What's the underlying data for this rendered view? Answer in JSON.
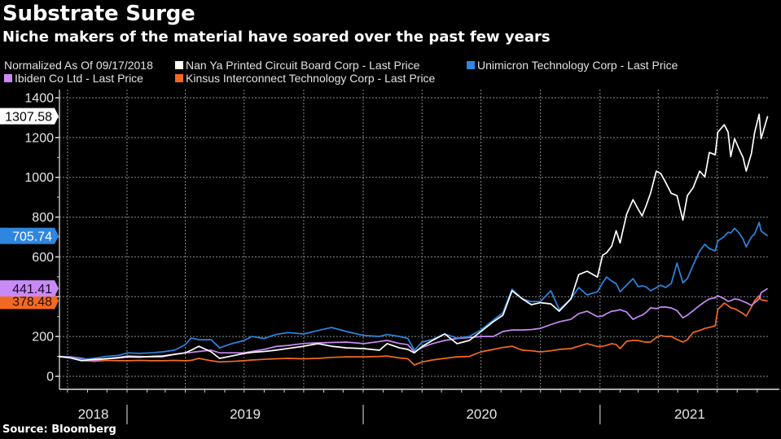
{
  "header": {
    "title": "Substrate Surge",
    "subtitle": "Niche makers of the material have soared over the past few years"
  },
  "footer": {
    "source": "Source: Bloomberg"
  },
  "chart_data": {
    "type": "line",
    "title": "Substrate Surge",
    "subtitle": "Niche makers of the material have soared over the past few years",
    "normalization_note": "Normalized As Of 09/17/2018",
    "xlabel": "",
    "ylabel": "",
    "ylim": [
      0,
      1400
    ],
    "yticks": [
      0,
      200,
      400,
      600,
      800,
      1000,
      1200,
      1400
    ],
    "ytick_labels": [
      "0",
      "200",
      "400",
      "600",
      "800",
      "1000",
      "1200",
      "1400"
    ],
    "xlim": [
      "2018-09-17",
      "2021-09-17"
    ],
    "x_year_labels": [
      "2018",
      "2019",
      "2020",
      "2021"
    ],
    "grid": true,
    "legend_position": "top-left",
    "x": [
      "2018-09-17",
      "2018-10-06",
      "2018-10-23",
      "2018-11-11",
      "2018-11-29",
      "2018-12-18",
      "2019-01-02",
      "2019-01-20",
      "2019-02-07",
      "2019-02-25",
      "2019-03-15",
      "2019-04-01",
      "2019-04-10",
      "2019-04-22",
      "2019-05-11",
      "2019-05-24",
      "2019-06-12",
      "2019-07-01",
      "2019-07-13",
      "2019-08-01",
      "2019-08-19",
      "2019-09-07",
      "2019-10-01",
      "2019-10-23",
      "2019-11-13",
      "2019-12-06",
      "2020-01-02",
      "2020-01-26",
      "2020-02-07",
      "2020-02-26",
      "2020-03-10",
      "2020-03-20",
      "2020-04-01",
      "2020-04-17",
      "2020-05-06",
      "2020-05-25",
      "2020-06-13",
      "2020-07-01",
      "2020-07-20",
      "2020-08-04",
      "2020-08-18",
      "2020-09-03",
      "2020-09-17",
      "2020-10-01",
      "2020-10-17",
      "2020-10-30",
      "2020-11-17",
      "2020-11-29",
      "2020-12-12",
      "2020-12-28",
      "2021-01-05",
      "2021-01-11",
      "2021-01-19",
      "2021-01-26",
      "2021-02-01",
      "2021-02-11",
      "2021-02-21",
      "2021-03-01",
      "2021-03-07",
      "2021-03-13",
      "2021-03-20",
      "2021-03-29",
      "2021-04-05",
      "2021-04-12",
      "2021-04-21",
      "2021-04-30",
      "2021-05-09",
      "2021-05-16",
      "2021-05-25",
      "2021-06-04",
      "2021-06-12",
      "2021-06-19",
      "2021-06-28",
      "2021-07-02",
      "2021-07-12",
      "2021-07-18",
      "2021-07-22",
      "2021-07-28",
      "2021-08-04",
      "2021-08-10",
      "2021-08-15",
      "2021-08-23",
      "2021-08-28",
      "2021-09-04",
      "2021-09-07",
      "2021-09-17"
    ],
    "series": [
      {
        "name": "Nan Ya Printed Circuit Board Corp - Last Price",
        "color": "#ffffff",
        "last_value_label": "1307.58",
        "label_text_color": "#000000",
        "values": [
          100,
          92,
          78,
          85,
          88,
          92,
          98,
          96,
          100,
          102,
          110,
          118,
          131,
          151,
          123,
          90,
          102,
          115,
          120,
          125,
          131,
          140,
          151,
          164,
          151,
          143,
          139,
          131,
          164,
          143,
          135,
          118,
          150,
          180,
          213,
          164,
          180,
          225,
          274,
          307,
          430,
          389,
          360,
          370,
          364,
          327,
          389,
          511,
          528,
          499,
          609,
          620,
          654,
          732,
          670,
          814,
          888,
          839,
          806,
          855,
          920,
          1031,
          1018,
          977,
          920,
          908,
          785,
          908,
          949,
          1031,
          1002,
          1125,
          1113,
          1227,
          1264,
          1227,
          1104,
          1194,
          1141,
          1100,
          1031,
          1121,
          1227,
          1317,
          1194,
          1307.58
        ]
      },
      {
        "name": "Unimicron Technology Corp - Last Price",
        "color": "#2e86e0",
        "last_value_label": "705.74",
        "label_text_color": "#ffffff",
        "values": [
          100,
          95,
          85,
          90,
          100,
          105,
          118,
          115,
          118,
          123,
          131,
          159,
          192,
          184,
          184,
          143,
          164,
          180,
          200,
          190,
          210,
          220,
          213,
          230,
          245,
          225,
          205,
          200,
          210,
          200,
          190,
          131,
          172,
          185,
          213,
          192,
          200,
          233,
          282,
          320,
          438,
          389,
          375,
          376,
          430,
          335,
          389,
          446,
          409,
          425,
          470,
          499,
          479,
          465,
          425,
          458,
          491,
          450,
          455,
          450,
          430,
          445,
          458,
          446,
          466,
          569,
          470,
          491,
          560,
          630,
          663,
          642,
          630,
          680,
          703,
          724,
          720,
          744,
          720,
          690,
          650,
          700,
          716,
          773,
          730,
          705.74
        ]
      },
      {
        "name": "Ibiden Co Ltd - Last Price",
        "color": "#c98af5",
        "last_value_label": "441.41",
        "label_text_color": "#1a0a2a",
        "values": [
          100,
          98,
          90,
          80,
          88,
          95,
          102,
          100,
          98,
          98,
          110,
          118,
          120,
          125,
          131,
          118,
          118,
          118,
          125,
          135,
          150,
          155,
          165,
          168,
          170,
          172,
          164,
          175,
          180,
          165,
          159,
          123,
          145,
          164,
          180,
          190,
          195,
          200,
          200,
          225,
          233,
          233,
          235,
          241,
          260,
          274,
          286,
          315,
          327,
          300,
          303,
          315,
          327,
          330,
          335,
          323,
          286,
          300,
          307,
          320,
          344,
          340,
          348,
          348,
          344,
          330,
          294,
          307,
          330,
          356,
          375,
          389,
          395,
          405,
          390,
          376,
          380,
          389,
          385,
          376,
          370,
          356,
          370,
          389,
          420,
          441.41
        ]
      },
      {
        "name": "Kinsus Interconnect Technology Corp - Last Price",
        "color": "#f26a22",
        "last_value_label": "378.48",
        "label_text_color": "#2a0e00",
        "values": [
          100,
          95,
          80,
          75,
          80,
          78,
          78,
          80,
          78,
          78,
          80,
          78,
          80,
          90,
          78,
          72,
          75,
          78,
          82,
          85,
          88,
          90,
          88,
          90,
          95,
          98,
          98,
          100,
          102,
          92,
          88,
          57,
          72,
          82,
          90,
          98,
          100,
          123,
          135,
          145,
          151,
          131,
          128,
          123,
          128,
          135,
          139,
          151,
          164,
          150,
          151,
          155,
          164,
          160,
          139,
          176,
          180,
          180,
          175,
          172,
          172,
          195,
          205,
          200,
          200,
          185,
          172,
          184,
          221,
          230,
          241,
          245,
          254,
          335,
          368,
          355,
          344,
          340,
          327,
          315,
          303,
          348,
          380,
          405,
          384,
          378.48
        ]
      }
    ]
  }
}
